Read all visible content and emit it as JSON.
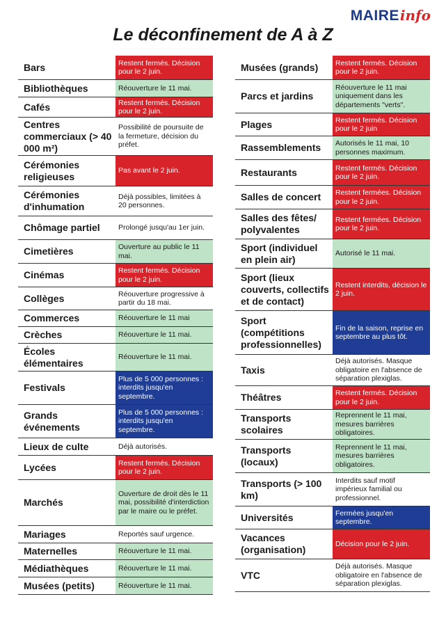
{
  "brand": {
    "part1": "MAIRE",
    "part2": "info"
  },
  "title": "Le déconfinement de A à Z",
  "colors": {
    "red": "#d8232a",
    "green": "#bfe3c6",
    "blue": "#1f3d94",
    "white": "#ffffff"
  },
  "left": [
    {
      "label": "Bars",
      "status": "Restent fermés. Décision pour le 2 juin.",
      "color": "red"
    },
    {
      "label": "Bibliothèques",
      "status": "Réouverture le 11 mai.",
      "color": "green"
    },
    {
      "label": "Cafés",
      "status": "Restent fermés. Décision pour le 2 juin.",
      "color": "red"
    },
    {
      "label": "Centres commerciaux (> 40 000 m²)",
      "status": "Possibilité de poursuite de la fermeture, décision du préfet.",
      "color": "white"
    },
    {
      "label": "Cérémonies religieuses",
      "status": "Pas avant le 2 juin.",
      "color": "red"
    },
    {
      "label": "Cérémonies d'inhumation",
      "status": "Déjà possibles, limitées à 20 personnes.",
      "color": "white"
    },
    {
      "label": "Chômage partiel",
      "status": "Prolongé jusqu'au 1er juin.",
      "color": "white"
    },
    {
      "label": "Cimetières",
      "status": "Ouverture au public le 11 mai.",
      "color": "green"
    },
    {
      "label": "Cinémas",
      "status": "Restent fermés. Décision pour le 2 juin.",
      "color": "red"
    },
    {
      "label": "Collèges",
      "status": "Réouverture progressive à partir du 18 mai.",
      "color": "white"
    },
    {
      "label": "Commerces",
      "status": "Réouverture le 11 mai",
      "color": "green"
    },
    {
      "label": "Crèches",
      "status": "Réouverture le 11 mai.",
      "color": "green"
    },
    {
      "label": "Écoles élémentaires",
      "status": "Réouverture le 11 mai.",
      "color": "green"
    },
    {
      "label": "Festivals",
      "status": "Plus de 5 000 personnes : interdits jusqu'en septembre.",
      "color": "blue"
    },
    {
      "label": "Grands événements",
      "status": "Plus de 5 000 personnes : interdits jusqu'en septembre.",
      "color": "blue"
    },
    {
      "label": "Lieux de culte",
      "status": "Déjà autorisés.",
      "color": "white"
    },
    {
      "label": "Lycées",
      "status": "Restent fermés. Décision pour le 2 juin.",
      "color": "red"
    },
    {
      "label": "Marchés",
      "status": "Ouverture de droit dès le 11 mai, possibilité d'interdiction par le maire ou le préfet.",
      "color": "green"
    },
    {
      "label": "Mariages",
      "status": "Reportés sauf urgence.",
      "color": "white"
    },
    {
      "label": "Maternelles",
      "status": "Réouverture le 11 mai.",
      "color": "green"
    },
    {
      "label": "Médiathèques",
      "status": "Réouverture le 11 mai.",
      "color": "green"
    },
    {
      "label": "Musées (petits)",
      "status": "Réouverture le 11 mai.",
      "color": "green"
    }
  ],
  "right": [
    {
      "label": "Musées (grands)",
      "status": "Restent fermés. Décision pour le 2 juin.",
      "color": "red"
    },
    {
      "label": "Parcs et jardins",
      "status": "Réouverture le 11 mai uniquement dans les départements \"verts\".",
      "color": "green"
    },
    {
      "label": "Plages",
      "status": "Restent fermés. Décision pour le 2 juin",
      "color": "red"
    },
    {
      "label": "Rassemblements",
      "status": "Autorisés le 11 mai, 10 personnes maximum.",
      "color": "green"
    },
    {
      "label": "Restaurants",
      "status": "Restent fermés. Décision pour le 2 juin.",
      "color": "red"
    },
    {
      "label": "Salles de concert",
      "status": "Restent fermées. Décision pour le 2 juin.",
      "color": "red"
    },
    {
      "label": "Salles des fêtes/ polyvalentes",
      "status": "Restent fermées. Décision pour le 2 juin.",
      "color": "red"
    },
    {
      "label": "Sport (individuel en plein air)",
      "status": "Autorisé le 11 mai.",
      "color": "green"
    },
    {
      "label": "Sport (lieux couverts, collectifs et de contact)",
      "status": "Restent interdits, décision le 2 juin.",
      "color": "red"
    },
    {
      "label": "Sport (compétitions professionnelles)",
      "status": "Fin de la saison, reprise en septembre au plus tôt.",
      "color": "blue"
    },
    {
      "label": "Taxis",
      "status": "Déjà autorisés. Masque obligatoire en l'absence de séparation plexiglas.",
      "color": "white"
    },
    {
      "label": "Théâtres",
      "status": "Restent fermés. Décision pour le 2 juin.",
      "color": "red"
    },
    {
      "label": "Transports scolaires",
      "status": "Reprennent le 11 mai, mesures barrières obligatoires.",
      "color": "green"
    },
    {
      "label": "Transports (locaux)",
      "status": "Reprennent le 11 mai, mesures barrières obligatoires.",
      "color": "green"
    },
    {
      "label": "Transports (> 100 km)",
      "status": "Interdits sauf motif impérieux familial ou professionnel.",
      "color": "white"
    },
    {
      "label": "Universités",
      "status": "Fermées jusqu'en septembre.",
      "color": "blue"
    },
    {
      "label": "Vacances (organisation)",
      "status": "Décision pour le 2 juin.",
      "color": "red"
    },
    {
      "label": "VTC",
      "status": "Déjà autorisés. Masque obligatoire en l'absence de séparation plexiglas.",
      "color": "white"
    }
  ]
}
